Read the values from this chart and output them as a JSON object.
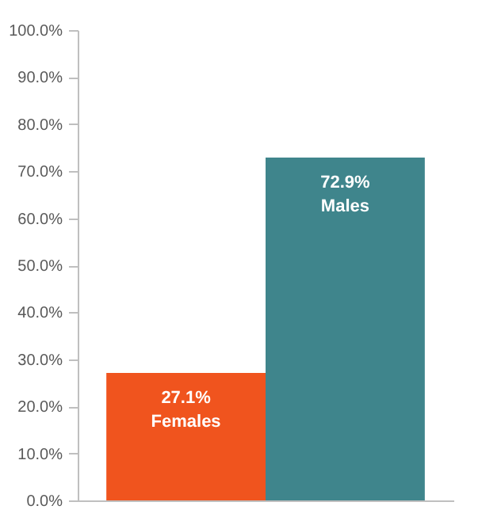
{
  "chart_data": {
    "type": "bar",
    "categories": [
      "Females",
      "Males"
    ],
    "values": [
      27.1,
      72.9
    ],
    "colors": [
      "#f0541e",
      "#3f858c"
    ],
    "value_labels": [
      "27.1%",
      "72.9%"
    ],
    "ylim": [
      0,
      100
    ],
    "yticks": [
      {
        "value": 0,
        "label": "0.0%"
      },
      {
        "value": 10,
        "label": "10.0%"
      },
      {
        "value": 20,
        "label": "20.0%"
      },
      {
        "value": 30,
        "label": "30.0%"
      },
      {
        "value": 40,
        "label": "40.0%"
      },
      {
        "value": 50,
        "label": "50.0%"
      },
      {
        "value": 60,
        "label": "60.0%"
      },
      {
        "value": 70,
        "label": "70.0%"
      },
      {
        "value": 80,
        "label": "80.0%"
      },
      {
        "value": 90,
        "label": "90.0%"
      },
      {
        "value": 100,
        "label": "100.0%"
      }
    ],
    "tick_labels": "y",
    "grid": false
  }
}
